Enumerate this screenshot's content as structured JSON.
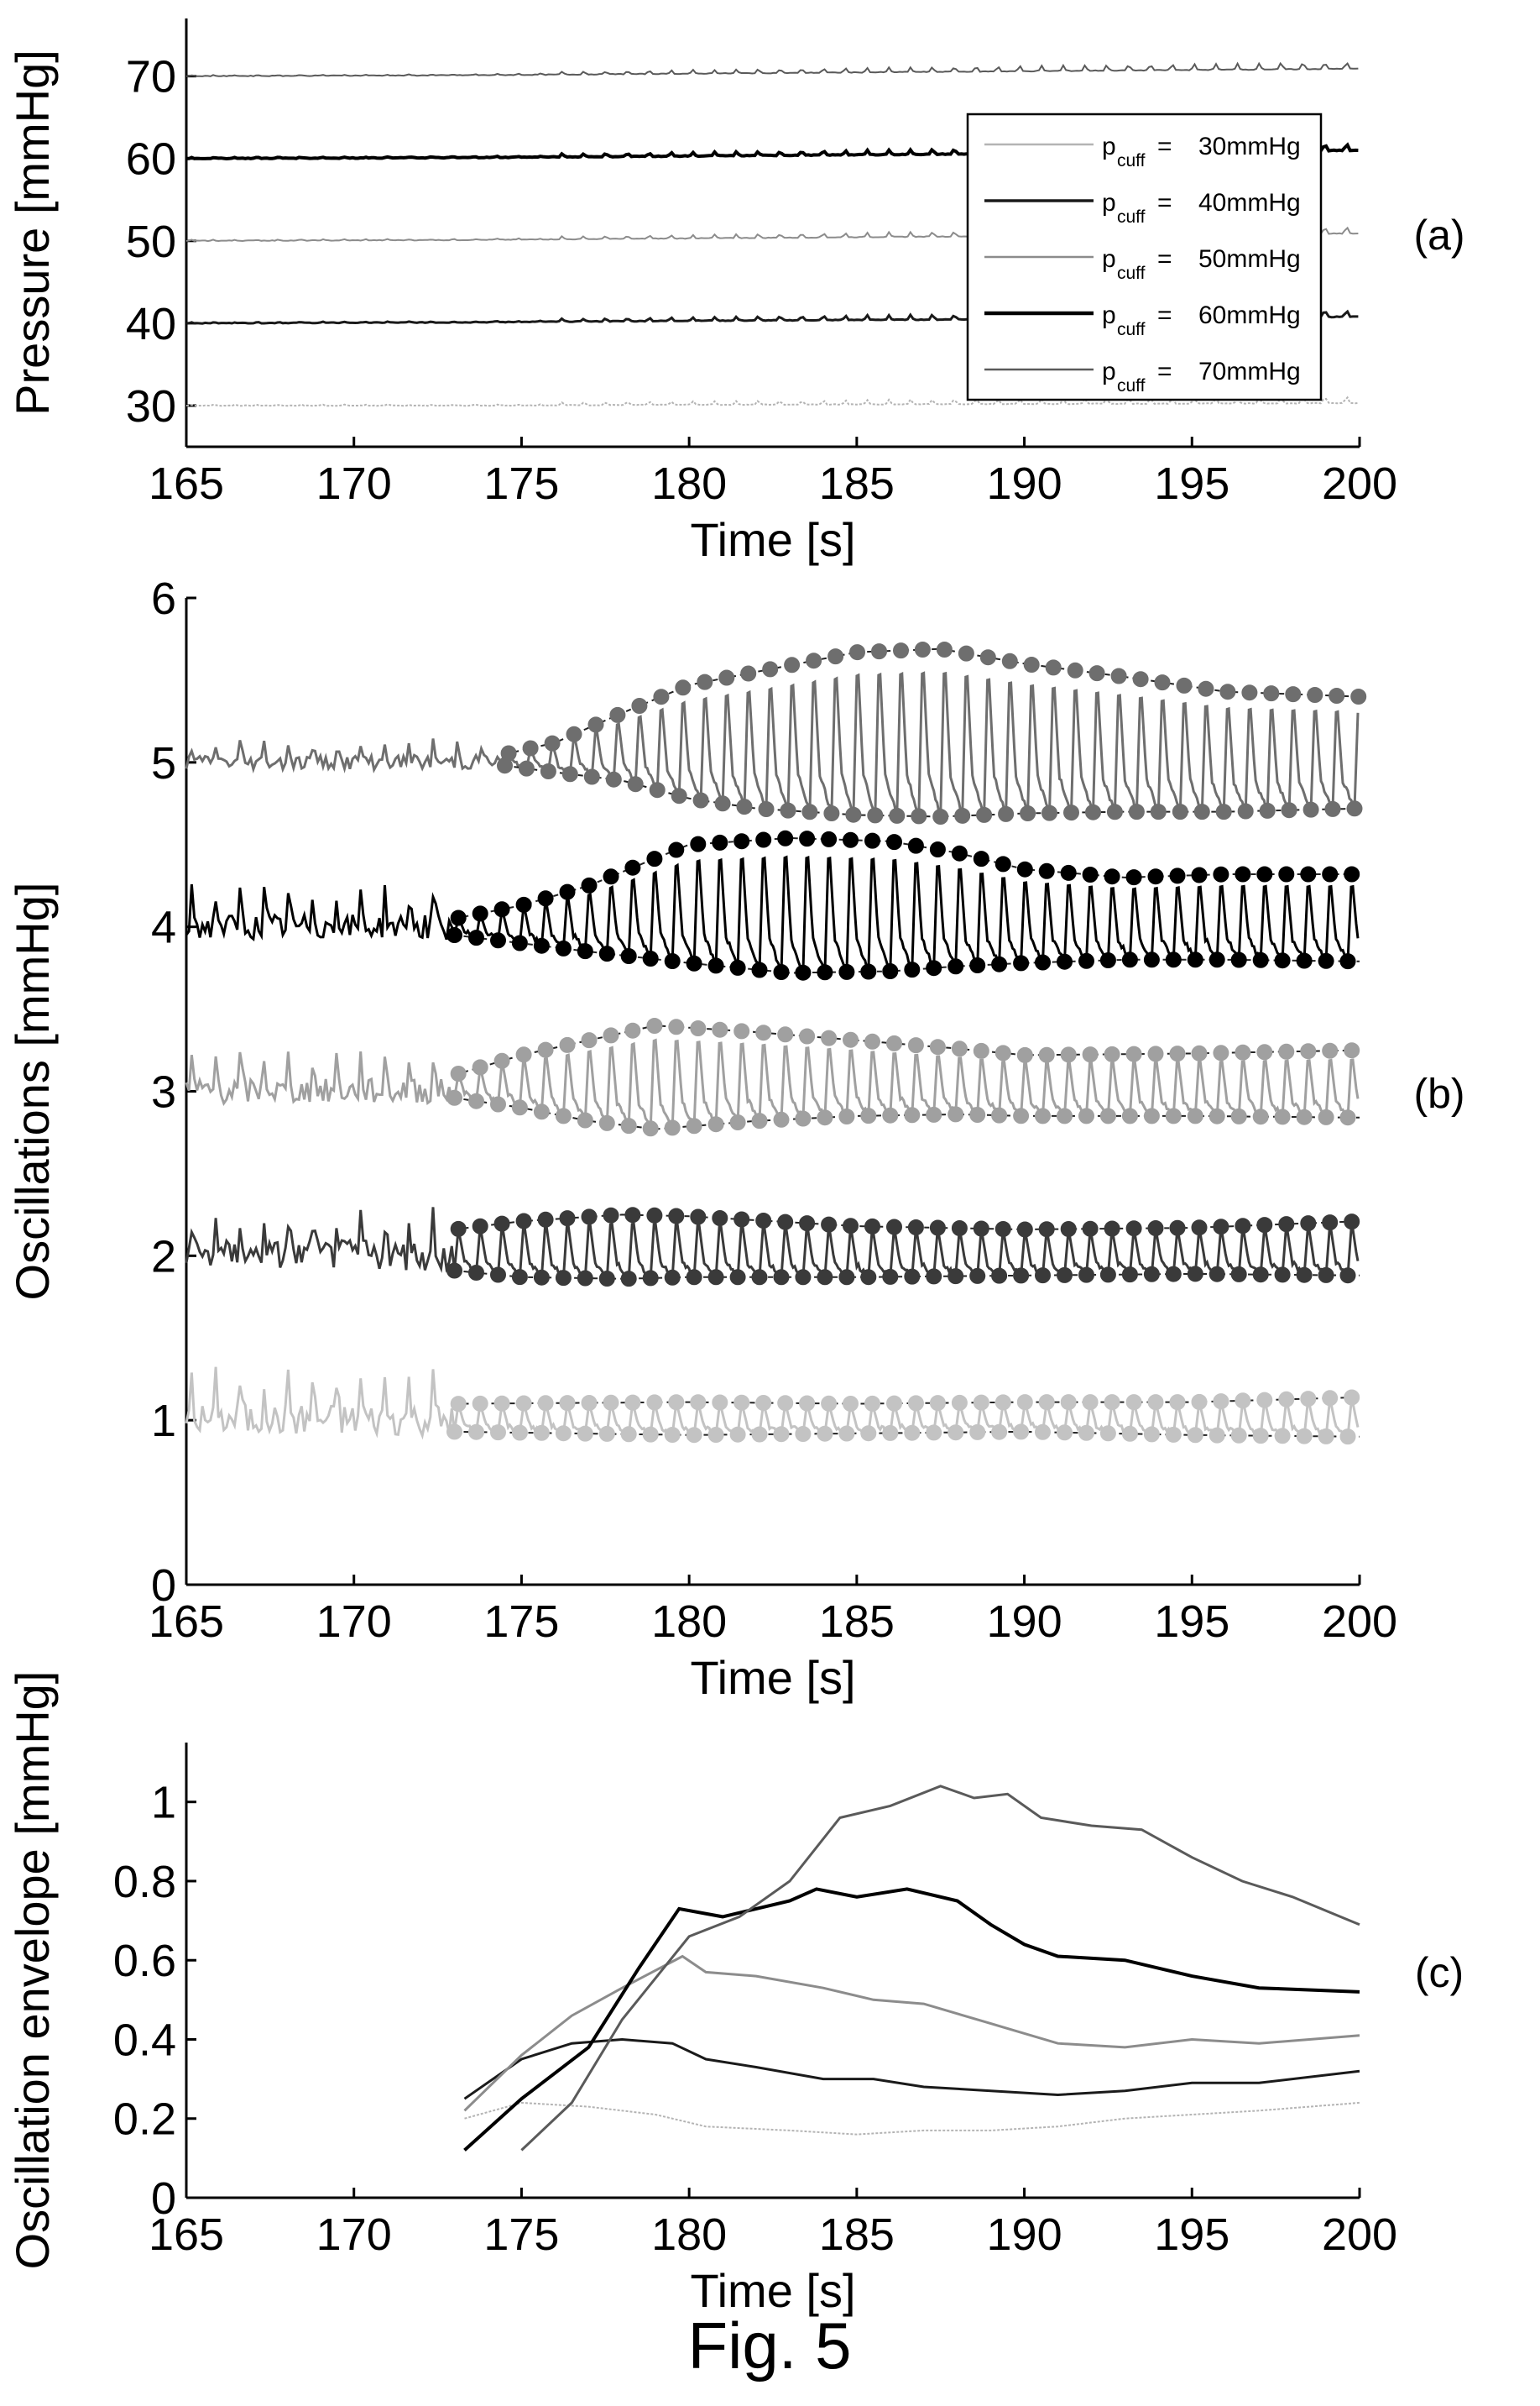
{
  "figure": {
    "caption": "Fig. 5"
  },
  "chart_data": [
    {
      "id": "a",
      "type": "line",
      "panel_label": "(a)",
      "xlabel": "Time [s]",
      "ylabel": "Pressure [mmHg]",
      "xlim": [
        165,
        200
      ],
      "ylim": [
        25,
        77
      ],
      "xticks": [
        165,
        170,
        175,
        180,
        185,
        190,
        195,
        200
      ],
      "yticks": [
        30,
        40,
        50,
        60,
        70
      ],
      "grid": false,
      "legend_position": "right",
      "series": [
        {
          "name": "30mmHg",
          "legend_label": "p",
          "legend_sub": "cuff",
          "legend_eq": " = ",
          "color": "#b4b4b4",
          "width": 2,
          "values": [
            30.0,
            30.0,
            30.1,
            30.2,
            30.3
          ]
        },
        {
          "name": "40mmHg",
          "legend_label": "p",
          "legend_sub": "cuff",
          "legend_eq": " = ",
          "color": "#1a1a1a",
          "width": 3,
          "values": [
            40.0,
            40.1,
            40.3,
            40.5,
            40.8
          ]
        },
        {
          "name": "50mmHg",
          "legend_label": "p",
          "legend_sub": "cuff",
          "legend_eq": " = ",
          "color": "#8c8c8c",
          "width": 2,
          "values": [
            50.0,
            50.1,
            50.3,
            50.6,
            50.9
          ]
        },
        {
          "name": "60mmHg",
          "legend_label": "p",
          "legend_sub": "cuff",
          "legend_eq": " = ",
          "color": "#000000",
          "width": 4,
          "values": [
            60.0,
            60.1,
            60.3,
            60.6,
            61.0
          ]
        },
        {
          "name": "70mmHg",
          "legend_label": "p",
          "legend_sub": "cuff",
          "legend_eq": " = ",
          "color": "#5a5a5a",
          "width": 2,
          "values": [
            70.0,
            70.1,
            70.3,
            70.6,
            70.9
          ]
        }
      ],
      "x": [
        165,
        173,
        180,
        190,
        200
      ]
    },
    {
      "id": "b",
      "type": "line",
      "panel_label": "(b)",
      "xlabel": "Time [s]",
      "ylabel": "Oscillations [mmHg]",
      "xlim": [
        165,
        200
      ],
      "ylim": [
        0,
        6
      ],
      "xticks": [
        165,
        170,
        175,
        180,
        185,
        190,
        195,
        200
      ],
      "yticks": [
        0,
        1,
        2,
        3,
        4,
        5,
        6
      ],
      "grid": false,
      "beat_start": 173,
      "beat_interval": 0.65,
      "series": [
        {
          "name": "30mmHg",
          "color": "#c3c3c3",
          "offset": 1,
          "env_x": [
            173,
            180,
            185,
            190,
            195,
            200
          ],
          "upper": [
            1.1,
            1.11,
            1.1,
            1.11,
            1.11,
            1.14
          ],
          "lower": [
            0.93,
            0.91,
            0.92,
            0.93,
            0.91,
            0.9
          ]
        },
        {
          "name": "40mmHg",
          "color": "#3a3a3a",
          "offset": 2,
          "env_x": [
            173,
            175,
            178,
            180,
            185,
            190,
            195,
            200
          ],
          "upper": [
            2.16,
            2.21,
            2.25,
            2.24,
            2.18,
            2.16,
            2.17,
            2.21
          ],
          "lower": [
            1.91,
            1.87,
            1.86,
            1.87,
            1.87,
            1.88,
            1.89,
            1.88
          ]
        },
        {
          "name": "50mmHg",
          "color": "#a0a0a0",
          "offset": 3,
          "env_x": [
            173,
            175,
            177,
            179,
            182,
            185,
            188,
            190,
            195,
            200
          ],
          "upper": [
            3.1,
            3.22,
            3.31,
            3.4,
            3.36,
            3.31,
            3.26,
            3.22,
            3.23,
            3.25
          ],
          "lower": [
            2.96,
            2.9,
            2.82,
            2.77,
            2.82,
            2.85,
            2.86,
            2.85,
            2.85,
            2.84
          ]
        },
        {
          "name": "60mmHg",
          "color": "#000000",
          "offset": 4,
          "env_x": [
            173,
            175,
            177,
            180,
            183,
            186,
            188,
            190,
            193,
            196,
            200
          ],
          "upper": [
            4.05,
            4.13,
            4.25,
            4.5,
            4.54,
            4.52,
            4.45,
            4.35,
            4.3,
            4.32,
            4.32
          ],
          "lower": [
            3.95,
            3.9,
            3.85,
            3.78,
            3.72,
            3.73,
            3.76,
            3.78,
            3.8,
            3.8,
            3.79
          ]
        },
        {
          "name": "70mmHg",
          "color": "#6e6e6e",
          "offset": 5,
          "env_x": [
            174.5,
            176,
            178,
            180,
            182,
            185,
            187.5,
            190,
            193,
            196,
            200
          ],
          "upper": [
            5.05,
            5.12,
            5.3,
            5.47,
            5.55,
            5.67,
            5.69,
            5.6,
            5.52,
            5.43,
            5.4
          ],
          "lower": [
            4.98,
            4.94,
            4.89,
            4.78,
            4.72,
            4.68,
            4.67,
            4.69,
            4.7,
            4.7,
            4.72
          ]
        }
      ]
    },
    {
      "id": "c",
      "type": "line",
      "panel_label": "(c)",
      "xlabel": "Time [s]",
      "ylabel": "Oscillation envelope [mmHg]",
      "xlim": [
        165,
        200
      ],
      "ylim": [
        0,
        1.15
      ],
      "xticks": [
        165,
        170,
        175,
        180,
        185,
        190,
        195,
        200
      ],
      "yticks": [
        0,
        0.2,
        0.4,
        0.6,
        0.8,
        1
      ],
      "grid": false,
      "series": [
        {
          "name": "30mmHg",
          "color": "#b4b4b4",
          "width": 2,
          "x": [
            173.3,
            175,
            177,
            179,
            180.5,
            183,
            185,
            187,
            189,
            191,
            193,
            195,
            197,
            200
          ],
          "y": [
            0.2,
            0.24,
            0.23,
            0.21,
            0.18,
            0.17,
            0.16,
            0.17,
            0.17,
            0.18,
            0.2,
            0.21,
            0.22,
            0.24
          ]
        },
        {
          "name": "40mmHg",
          "color": "#1a1a1a",
          "width": 3,
          "x": [
            173.3,
            175,
            176.5,
            178,
            179.5,
            180.5,
            182,
            184,
            185.5,
            187,
            189,
            191,
            193,
            195,
            197,
            200
          ],
          "y": [
            0.25,
            0.35,
            0.39,
            0.4,
            0.39,
            0.35,
            0.33,
            0.3,
            0.3,
            0.28,
            0.27,
            0.26,
            0.27,
            0.29,
            0.29,
            0.32
          ]
        },
        {
          "name": "50mmHg",
          "color": "#8c8c8c",
          "width": 3,
          "x": [
            173.3,
            175,
            176.5,
            178,
            179.8,
            180.5,
            182,
            184,
            185.5,
            187,
            189,
            191,
            193,
            195,
            197,
            200
          ],
          "y": [
            0.22,
            0.36,
            0.46,
            0.53,
            0.61,
            0.57,
            0.56,
            0.53,
            0.5,
            0.49,
            0.44,
            0.39,
            0.38,
            0.4,
            0.39,
            0.41
          ]
        },
        {
          "name": "60mmHg",
          "color": "#000000",
          "width": 4,
          "x": [
            173.3,
            175,
            177,
            178.5,
            179.7,
            181,
            183,
            183.8,
            185,
            186.5,
            188,
            189,
            190,
            191,
            193,
            195,
            197,
            200
          ],
          "y": [
            0.12,
            0.25,
            0.38,
            0.58,
            0.73,
            0.71,
            0.75,
            0.78,
            0.76,
            0.78,
            0.75,
            0.69,
            0.64,
            0.61,
            0.6,
            0.56,
            0.53,
            0.52
          ]
        },
        {
          "name": "70mmHg",
          "color": "#5a5a5a",
          "width": 3,
          "x": [
            175,
            176.5,
            178,
            180,
            181.5,
            183,
            184.5,
            186,
            187.5,
            188.5,
            189.5,
            190.5,
            192,
            193.5,
            195,
            196.5,
            198,
            200
          ],
          "y": [
            0.12,
            0.24,
            0.45,
            0.66,
            0.71,
            0.8,
            0.96,
            0.99,
            1.04,
            1.01,
            1.02,
            0.96,
            0.94,
            0.93,
            0.86,
            0.8,
            0.76,
            0.69
          ]
        }
      ]
    }
  ]
}
